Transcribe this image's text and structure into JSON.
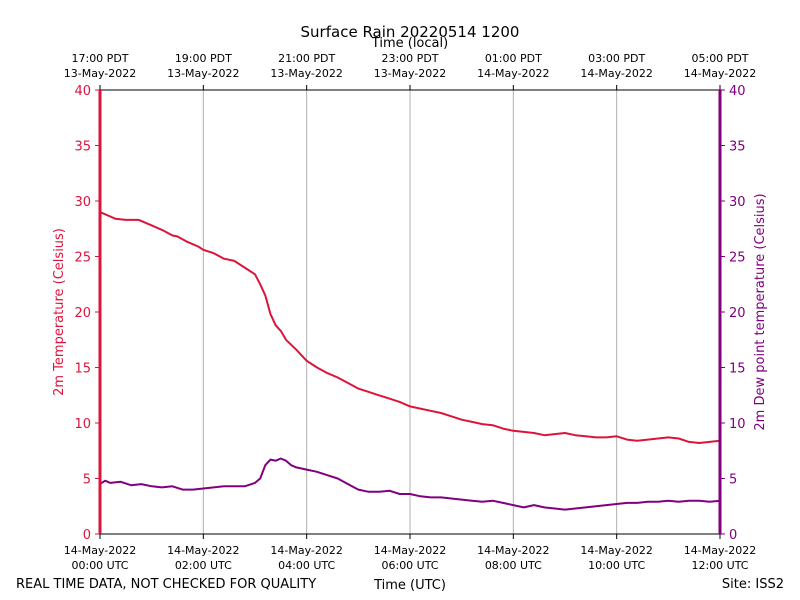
{
  "chart_data": {
    "type": "line",
    "title": "Surface Rain 20220514 1200",
    "top_axis_label": "Time (local)",
    "xlabel": "Time (UTC)",
    "ylabel_left": "2m Temperature (Celsius)",
    "ylabel_right": "2m Dew point temperature (Celsius)",
    "footer_left": "REAL TIME DATA, NOT CHECKED FOR QUALITY",
    "footer_right": "Site: ISS2",
    "x_range_hours_utc": [
      0,
      12
    ],
    "ylim": [
      0,
      40
    ],
    "y_ticks": [
      0,
      5,
      10,
      15,
      20,
      25,
      30,
      35,
      40
    ],
    "grid": "vertical",
    "bottom_ticks": [
      {
        "hour": 0,
        "line1": "14-May-2022",
        "line2": "00:00 UTC"
      },
      {
        "hour": 2,
        "line1": "14-May-2022",
        "line2": "02:00 UTC"
      },
      {
        "hour": 4,
        "line1": "14-May-2022",
        "line2": "04:00 UTC"
      },
      {
        "hour": 6,
        "line1": "14-May-2022",
        "line2": "06:00 UTC"
      },
      {
        "hour": 8,
        "line1": "14-May-2022",
        "line2": "08:00 UTC"
      },
      {
        "hour": 10,
        "line1": "14-May-2022",
        "line2": "10:00 UTC"
      },
      {
        "hour": 12,
        "line1": "14-May-2022",
        "line2": "12:00 UTC"
      }
    ],
    "top_ticks": [
      {
        "hour": 0,
        "line1": "17:00 PDT",
        "line2": "13-May-2022"
      },
      {
        "hour": 2,
        "line1": "19:00 PDT",
        "line2": "13-May-2022"
      },
      {
        "hour": 4,
        "line1": "21:00 PDT",
        "line2": "13-May-2022"
      },
      {
        "hour": 6,
        "line1": "23:00 PDT",
        "line2": "13-May-2022"
      },
      {
        "hour": 8,
        "line1": "01:00 PDT",
        "line2": "14-May-2022"
      },
      {
        "hour": 10,
        "line1": "03:00 PDT",
        "line2": "14-May-2022"
      },
      {
        "hour": 12,
        "line1": "05:00 PDT",
        "line2": "14-May-2022"
      }
    ],
    "colors": {
      "temperature": "#dc143c",
      "dewpoint": "#800080",
      "grid": "#b0b0b0",
      "text": "#000000"
    },
    "series": [
      {
        "name": "2m Temperature",
        "axis": "left",
        "x": [
          0,
          0.1,
          0.2,
          0.3,
          0.5,
          0.75,
          1.0,
          1.2,
          1.4,
          1.5,
          1.7,
          1.9,
          2.0,
          2.2,
          2.4,
          2.6,
          2.8,
          3.0,
          3.1,
          3.2,
          3.3,
          3.4,
          3.5,
          3.6,
          3.8,
          3.9,
          4.0,
          4.2,
          4.4,
          4.6,
          4.8,
          5.0,
          5.2,
          5.4,
          5.6,
          5.8,
          6.0,
          6.2,
          6.4,
          6.6,
          6.8,
          7.0,
          7.2,
          7.4,
          7.6,
          7.8,
          8.0,
          8.2,
          8.4,
          8.6,
          8.8,
          9.0,
          9.2,
          9.4,
          9.6,
          9.8,
          10.0,
          10.2,
          10.4,
          10.6,
          10.8,
          11.0,
          11.2,
          11.4,
          11.6,
          11.8,
          12.0
        ],
        "y": [
          29.0,
          28.8,
          28.6,
          28.4,
          28.3,
          28.3,
          27.8,
          27.4,
          26.9,
          26.8,
          26.3,
          25.9,
          25.6,
          25.3,
          24.8,
          24.6,
          24.0,
          23.4,
          22.5,
          21.5,
          19.8,
          18.8,
          18.3,
          17.5,
          16.6,
          16.1,
          15.6,
          15.0,
          14.5,
          14.1,
          13.6,
          13.1,
          12.8,
          12.5,
          12.2,
          11.9,
          11.5,
          11.3,
          11.1,
          10.9,
          10.6,
          10.3,
          10.1,
          9.9,
          9.8,
          9.5,
          9.3,
          9.2,
          9.1,
          8.9,
          9.0,
          9.1,
          8.9,
          8.8,
          8.7,
          8.7,
          8.8,
          8.5,
          8.4,
          8.5,
          8.6,
          8.7,
          8.6,
          8.3,
          8.2,
          8.3,
          8.4
        ]
      },
      {
        "name": "2m Dew point temperature",
        "axis": "right",
        "x": [
          0,
          0.1,
          0.2,
          0.4,
          0.6,
          0.8,
          1.0,
          1.2,
          1.4,
          1.6,
          1.8,
          2.0,
          2.2,
          2.4,
          2.6,
          2.8,
          3.0,
          3.1,
          3.2,
          3.3,
          3.4,
          3.5,
          3.6,
          3.7,
          3.8,
          4.0,
          4.2,
          4.4,
          4.6,
          4.8,
          5.0,
          5.2,
          5.4,
          5.6,
          5.8,
          6.0,
          6.2,
          6.4,
          6.6,
          6.8,
          7.0,
          7.2,
          7.4,
          7.6,
          7.8,
          8.0,
          8.2,
          8.4,
          8.6,
          8.8,
          9.0,
          9.2,
          9.4,
          9.6,
          9.8,
          10.0,
          10.2,
          10.4,
          10.6,
          10.8,
          11.0,
          11.2,
          11.4,
          11.6,
          11.8,
          12.0
        ],
        "y": [
          4.5,
          4.8,
          4.6,
          4.7,
          4.4,
          4.5,
          4.3,
          4.2,
          4.3,
          4.0,
          4.0,
          4.1,
          4.2,
          4.3,
          4.3,
          4.3,
          4.6,
          5.0,
          6.2,
          6.7,
          6.6,
          6.8,
          6.6,
          6.2,
          6.0,
          5.8,
          5.6,
          5.3,
          5.0,
          4.5,
          4.0,
          3.8,
          3.8,
          3.9,
          3.6,
          3.6,
          3.4,
          3.3,
          3.3,
          3.2,
          3.1,
          3.0,
          2.9,
          3.0,
          2.8,
          2.6,
          2.4,
          2.6,
          2.4,
          2.3,
          2.2,
          2.3,
          2.4,
          2.5,
          2.6,
          2.7,
          2.8,
          2.8,
          2.9,
          2.9,
          3.0,
          2.9,
          3.0,
          3.0,
          2.9,
          3.0
        ]
      }
    ]
  }
}
